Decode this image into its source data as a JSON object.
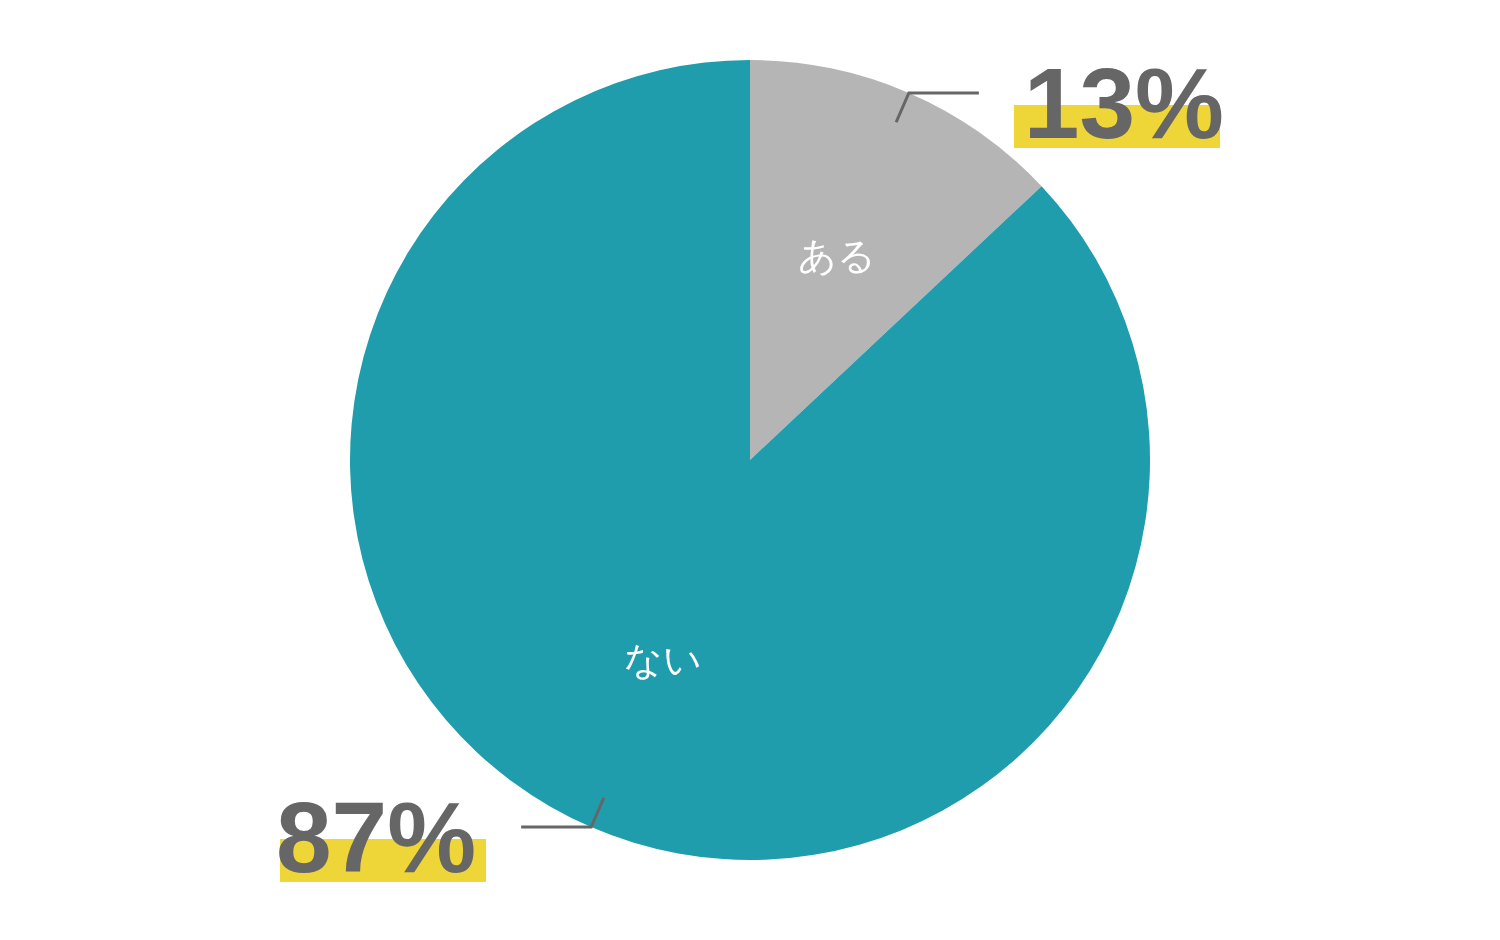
{
  "chart_data": {
    "type": "pie",
    "categories": [
      "ある",
      "ない"
    ],
    "values": [
      13,
      87
    ],
    "colors": [
      "#b5b5b5",
      "#1f9dad"
    ],
    "value_labels": [
      "13%",
      "87%"
    ]
  }
}
